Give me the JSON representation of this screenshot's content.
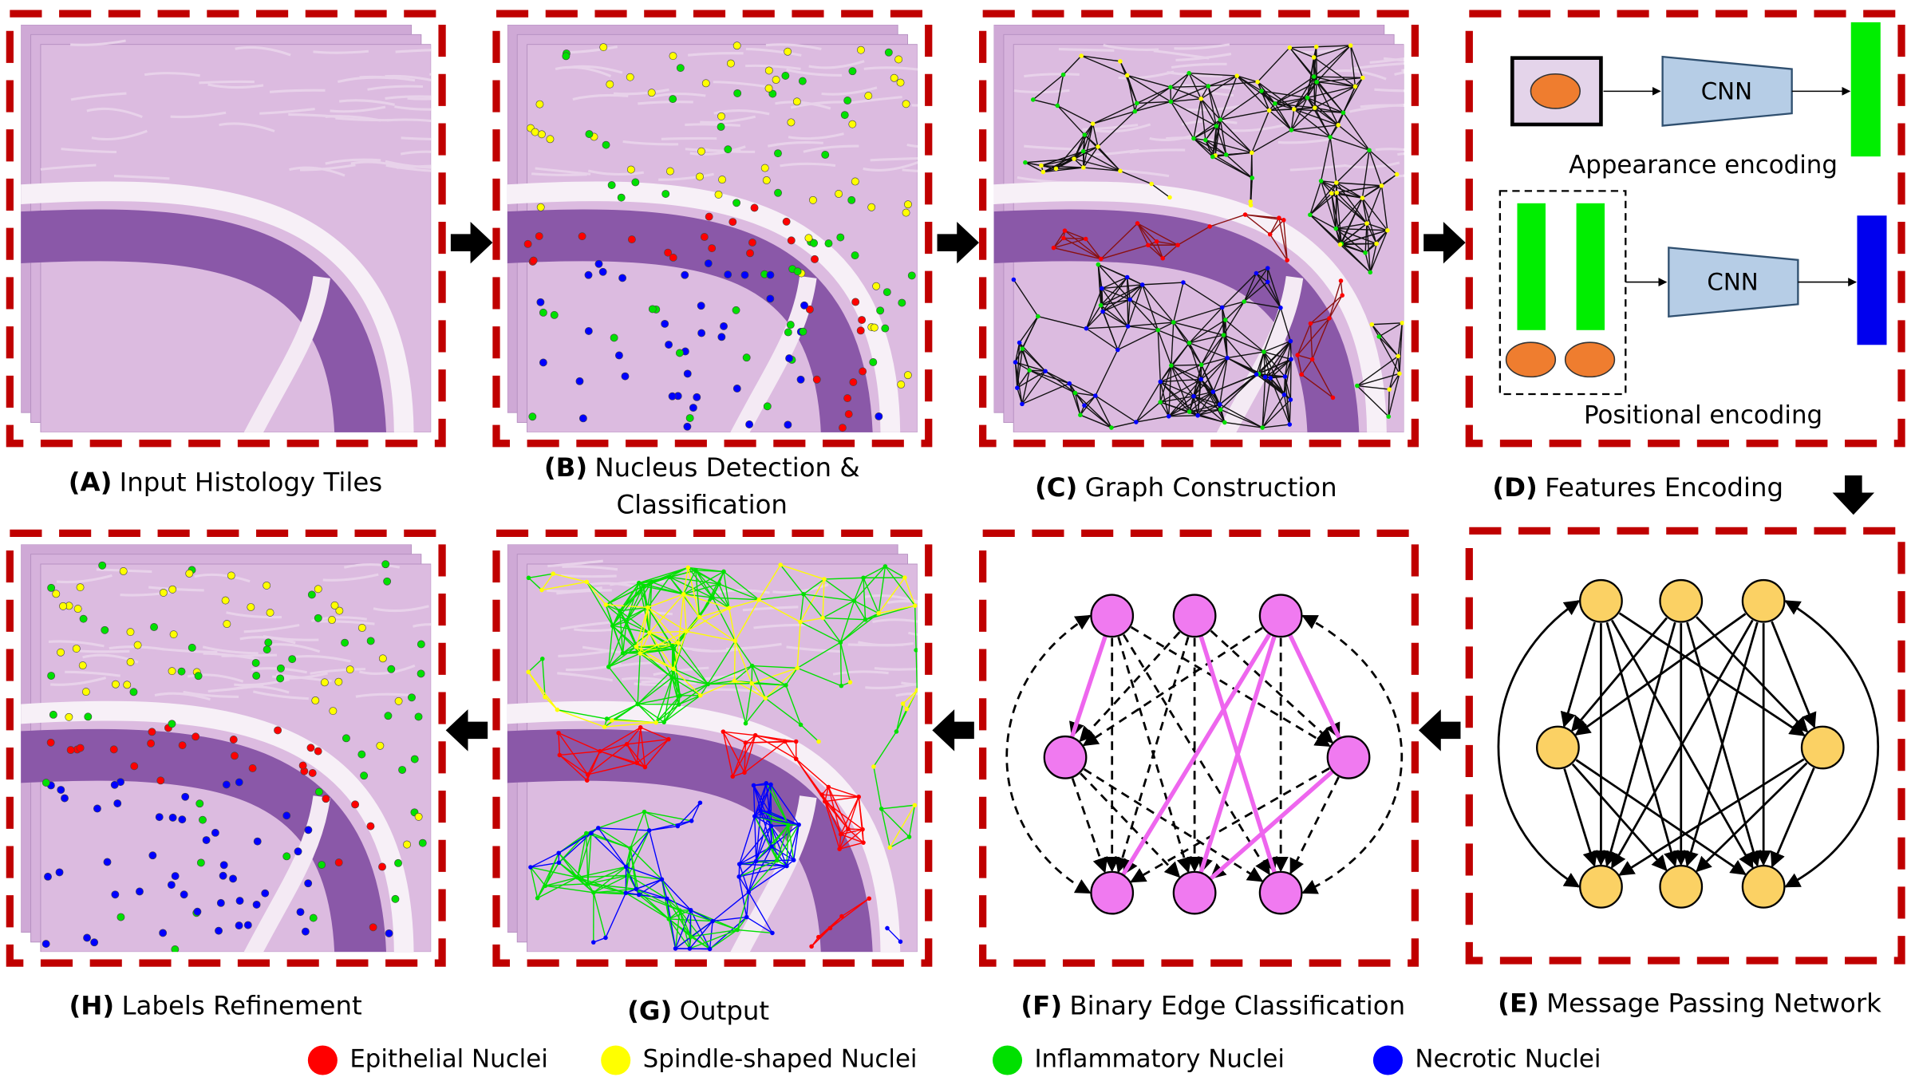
{
  "panels": [
    {
      "letter": "(A)",
      "title": [
        "Input Histology Tiles"
      ]
    },
    {
      "letter": "(B)",
      "title": [
        "Nucleus Detection &",
        "Classification"
      ]
    },
    {
      "letter": "(C)",
      "title": [
        "Graph Construction"
      ]
    },
    {
      "letter": "(D)",
      "title": [
        "Features Encoding"
      ]
    },
    {
      "letter": "(E)",
      "title": [
        "Message Passing Network"
      ]
    },
    {
      "letter": "(F)",
      "title": [
        "Binary Edge Classification"
      ]
    },
    {
      "letter": "(G)",
      "title": [
        "Output"
      ]
    },
    {
      "letter": "(H)",
      "title": [
        "Labels Refinement"
      ]
    }
  ],
  "encoding": {
    "cnn": [
      "CNN",
      "CNN"
    ],
    "appearance": "Appearance encoding",
    "positional": "Positional encoding"
  },
  "legend": [
    {
      "name": "Epithelial Nuclei",
      "color": "#ff0000"
    },
    {
      "name": "Spindle-shaped Nuclei",
      "color": "#ffff00"
    },
    {
      "name": "Inflammatory Nuclei",
      "color": "#00e000"
    },
    {
      "name": "Necrotic Nuclei",
      "color": "#0000ff"
    }
  ]
}
